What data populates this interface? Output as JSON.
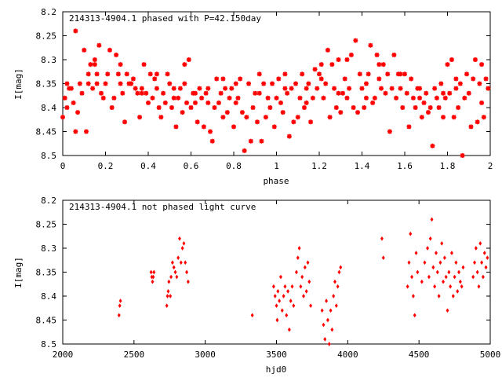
{
  "chart_data": [
    {
      "type": "scatter",
      "title": "214313-4904.1 phased with P=42.150day",
      "xlabel": "phase",
      "ylabel": "I[mag]",
      "xlim": [
        0,
        2
      ],
      "ylim": [
        8.5,
        8.2
      ],
      "y_inverted": true,
      "xticks": [
        "0",
        "0.2",
        "0.4",
        "0.6",
        "0.8",
        "1",
        "1.2",
        "1.4",
        "1.6",
        "1.8",
        "2"
      ],
      "yticks": [
        "8.2",
        "8.25",
        "8.3",
        "8.35",
        "8.4",
        "8.45",
        "8.5"
      ],
      "marker": "star",
      "color": "#ff0000",
      "grid": false,
      "points": [
        [
          0.0,
          8.42
        ],
        [
          0.01,
          8.38
        ],
        [
          0.02,
          8.35
        ],
        [
          0.03,
          8.36
        ],
        [
          0.04,
          8.36
        ],
        [
          0.05,
          8.39
        ],
        [
          0.06,
          8.24
        ],
        [
          0.06,
          8.45
        ],
        [
          0.07,
          8.41
        ],
        [
          0.08,
          8.35
        ],
        [
          0.09,
          8.37
        ],
        [
          0.1,
          8.28
        ],
        [
          0.11,
          8.45
        ],
        [
          0.12,
          8.33
        ],
        [
          0.13,
          8.31
        ],
        [
          0.14,
          8.36
        ],
        [
          0.15,
          8.3
        ],
        [
          0.16,
          8.33
        ],
        [
          0.17,
          8.27
        ],
        [
          0.18,
          8.37
        ],
        [
          0.19,
          8.38
        ],
        [
          0.2,
          8.35
        ],
        [
          0.21,
          8.33
        ],
        [
          0.22,
          8.28
        ],
        [
          0.23,
          8.4
        ],
        [
          0.24,
          8.38
        ],
        [
          0.25,
          8.29
        ],
        [
          0.26,
          8.33
        ],
        [
          0.27,
          8.35
        ],
        [
          0.28,
          8.37
        ],
        [
          0.29,
          8.43
        ],
        [
          0.3,
          8.33
        ],
        [
          0.31,
          8.35
        ],
        [
          0.32,
          8.35
        ],
        [
          0.33,
          8.34
        ],
        [
          0.34,
          8.36
        ],
        [
          0.35,
          8.37
        ],
        [
          0.36,
          8.42
        ],
        [
          0.37,
          8.36
        ],
        [
          0.38,
          8.31
        ],
        [
          0.39,
          8.37
        ],
        [
          0.4,
          8.39
        ],
        [
          0.41,
          8.33
        ],
        [
          0.42,
          8.38
        ],
        [
          0.43,
          8.34
        ],
        [
          0.44,
          8.36
        ],
        [
          0.45,
          8.4
        ],
        [
          0.46,
          8.42
        ],
        [
          0.47,
          8.37
        ],
        [
          0.48,
          8.39
        ],
        [
          0.49,
          8.33
        ],
        [
          0.5,
          8.35
        ],
        [
          0.51,
          8.4
        ],
        [
          0.52,
          8.36
        ],
        [
          0.53,
          8.44
        ],
        [
          0.54,
          8.38
        ],
        [
          0.55,
          8.36
        ],
        [
          0.56,
          8.41
        ],
        [
          0.57,
          8.35
        ],
        [
          0.58,
          8.39
        ],
        [
          0.59,
          8.3
        ],
        [
          0.6,
          8.4
        ],
        [
          0.61,
          8.37
        ],
        [
          0.62,
          8.39
        ],
        [
          0.63,
          8.43
        ],
        [
          0.64,
          8.36
        ],
        [
          0.65,
          8.38
        ],
        [
          0.66,
          8.44
        ],
        [
          0.67,
          8.37
        ],
        [
          0.68,
          8.36
        ],
        [
          0.69,
          8.45
        ],
        [
          0.7,
          8.47
        ],
        [
          0.71,
          8.4
        ],
        [
          0.72,
          8.34
        ],
        [
          0.73,
          8.39
        ],
        [
          0.74,
          8.37
        ],
        [
          0.75,
          8.42
        ],
        [
          0.76,
          8.36
        ],
        [
          0.77,
          8.41
        ],
        [
          0.78,
          8.38
        ],
        [
          0.79,
          8.36
        ],
        [
          0.8,
          8.44
        ],
        [
          0.81,
          8.35
        ],
        [
          0.82,
          8.38
        ],
        [
          0.83,
          8.34
        ],
        [
          0.84,
          8.41
        ],
        [
          0.85,
          8.49
        ],
        [
          0.86,
          8.42
        ],
        [
          0.87,
          8.35
        ],
        [
          0.88,
          8.47
        ],
        [
          0.89,
          8.4
        ],
        [
          0.9,
          8.37
        ],
        [
          0.91,
          8.43
        ],
        [
          0.92,
          8.33
        ],
        [
          0.93,
          8.47
        ],
        [
          0.94,
          8.35
        ],
        [
          0.95,
          8.42
        ],
        [
          0.96,
          8.38
        ],
        [
          0.97,
          8.4
        ],
        [
          0.98,
          8.35
        ],
        [
          0.99,
          8.44
        ],
        [
          1.0,
          8.38
        ],
        [
          1.01,
          8.34
        ],
        [
          1.02,
          8.39
        ],
        [
          1.03,
          8.41
        ],
        [
          1.04,
          8.33
        ],
        [
          1.05,
          8.37
        ],
        [
          1.06,
          8.46
        ],
        [
          1.07,
          8.36
        ],
        [
          1.08,
          8.43
        ],
        [
          1.09,
          8.35
        ],
        [
          1.1,
          8.42
        ],
        [
          1.11,
          8.38
        ],
        [
          1.12,
          8.33
        ],
        [
          1.13,
          8.4
        ],
        [
          1.14,
          8.36
        ],
        [
          1.15,
          8.35
        ],
        [
          1.16,
          8.43
        ],
        [
          1.17,
          8.38
        ],
        [
          1.18,
          8.32
        ],
        [
          1.19,
          8.36
        ],
        [
          1.2,
          8.33
        ],
        [
          1.21,
          8.31
        ],
        [
          1.22,
          8.38
        ],
        [
          1.23,
          8.35
        ],
        [
          1.24,
          8.28
        ],
        [
          1.25,
          8.42
        ],
        [
          1.26,
          8.31
        ],
        [
          1.27,
          8.36
        ],
        [
          1.28,
          8.4
        ],
        [
          1.29,
          8.3
        ],
        [
          1.3,
          8.41
        ],
        [
          1.31,
          8.37
        ],
        [
          1.32,
          8.34
        ],
        [
          1.33,
          8.38
        ],
        [
          1.34,
          8.36
        ],
        [
          1.35,
          8.29
        ],
        [
          1.36,
          8.4
        ],
        [
          1.37,
          8.26
        ],
        [
          1.38,
          8.41
        ],
        [
          1.39,
          8.33
        ],
        [
          1.4,
          8.36
        ],
        [
          1.41,
          8.4
        ],
        [
          1.42,
          8.35
        ],
        [
          1.43,
          8.33
        ],
        [
          1.44,
          8.27
        ],
        [
          1.45,
          8.39
        ],
        [
          1.46,
          8.38
        ],
        [
          1.47,
          8.29
        ],
        [
          1.48,
          8.34
        ],
        [
          1.49,
          8.36
        ],
        [
          1.5,
          8.31
        ],
        [
          1.51,
          8.37
        ],
        [
          1.52,
          8.33
        ],
        [
          1.53,
          8.45
        ],
        [
          1.54,
          8.36
        ],
        [
          1.55,
          8.29
        ],
        [
          1.56,
          8.38
        ],
        [
          1.57,
          8.33
        ],
        [
          1.58,
          8.36
        ],
        [
          1.59,
          8.4
        ],
        [
          1.6,
          8.33
        ],
        [
          1.61,
          8.37
        ],
        [
          1.62,
          8.44
        ],
        [
          1.63,
          8.34
        ],
        [
          1.64,
          8.38
        ],
        [
          1.65,
          8.4
        ],
        [
          1.66,
          8.36
        ],
        [
          1.67,
          8.38
        ],
        [
          1.68,
          8.42
        ],
        [
          1.69,
          8.39
        ],
        [
          1.7,
          8.37
        ],
        [
          1.71,
          8.41
        ],
        [
          1.72,
          8.4
        ],
        [
          1.73,
          8.48
        ],
        [
          1.74,
          8.36
        ],
        [
          1.75,
          8.38
        ],
        [
          1.76,
          8.4
        ],
        [
          1.77,
          8.35
        ],
        [
          1.78,
          8.42
        ],
        [
          1.79,
          8.38
        ],
        [
          1.8,
          8.31
        ],
        [
          1.81,
          8.37
        ],
        [
          1.82,
          8.3
        ],
        [
          1.83,
          8.42
        ],
        [
          1.84,
          8.36
        ],
        [
          1.85,
          8.4
        ],
        [
          1.86,
          8.35
        ],
        [
          1.87,
          8.5
        ],
        [
          1.88,
          8.38
        ],
        [
          1.89,
          8.33
        ],
        [
          1.9,
          8.37
        ],
        [
          1.91,
          8.44
        ],
        [
          1.92,
          8.34
        ],
        [
          1.93,
          8.3
        ],
        [
          1.94,
          8.43
        ],
        [
          1.95,
          8.35
        ],
        [
          1.96,
          8.39
        ],
        [
          1.97,
          8.42
        ],
        [
          1.98,
          8.34
        ],
        [
          1.99,
          8.36
        ],
        [
          0.02,
          8.4
        ],
        [
          0.12,
          8.35
        ],
        [
          0.15,
          8.31
        ],
        [
          0.16,
          8.35
        ],
        [
          0.27,
          8.31
        ],
        [
          0.37,
          8.37
        ],
        [
          0.44,
          8.33
        ],
        [
          0.52,
          8.38
        ],
        [
          0.57,
          8.31
        ],
        [
          0.62,
          8.37
        ],
        [
          0.68,
          8.39
        ],
        [
          0.75,
          8.34
        ],
        [
          0.81,
          8.39
        ],
        [
          0.92,
          8.37
        ],
        [
          1.04,
          8.36
        ],
        [
          1.14,
          8.39
        ],
        [
          1.21,
          8.34
        ],
        [
          1.29,
          8.37
        ],
        [
          1.33,
          8.3
        ],
        [
          1.42,
          8.38
        ],
        [
          1.48,
          8.31
        ],
        [
          1.58,
          8.33
        ],
        [
          1.67,
          8.36
        ],
        [
          1.78,
          8.37
        ],
        [
          1.84,
          8.34
        ],
        [
          1.96,
          8.31
        ]
      ]
    },
    {
      "type": "scatter",
      "title": "214313-4904.1 not phased light curve",
      "xlabel": "hjd0",
      "ylabel": "I[mag]",
      "xlim": [
        2000,
        5000
      ],
      "ylim": [
        8.5,
        8.2
      ],
      "y_inverted": true,
      "xticks": [
        "2000",
        "2500",
        "3000",
        "3500",
        "4000",
        "4500",
        "5000"
      ],
      "yticks": [
        "8.2",
        "8.25",
        "8.3",
        "8.35",
        "8.4",
        "8.45",
        "8.5"
      ],
      "marker": "diamond",
      "color": "#ff0000",
      "grid": false,
      "points": [
        [
          2395,
          8.44
        ],
        [
          2400,
          8.42
        ],
        [
          2405,
          8.41
        ],
        [
          2620,
          8.35
        ],
        [
          2625,
          8.36
        ],
        [
          2630,
          8.37
        ],
        [
          2635,
          8.36
        ],
        [
          2640,
          8.35
        ],
        [
          2730,
          8.42
        ],
        [
          2735,
          8.4
        ],
        [
          2740,
          8.39
        ],
        [
          2745,
          8.37
        ],
        [
          2755,
          8.4
        ],
        [
          2760,
          8.36
        ],
        [
          2770,
          8.33
        ],
        [
          2780,
          8.34
        ],
        [
          2790,
          8.35
        ],
        [
          2800,
          8.36
        ],
        [
          2810,
          8.32
        ],
        [
          2820,
          8.28
        ],
        [
          2830,
          8.33
        ],
        [
          2840,
          8.3
        ],
        [
          2850,
          8.29
        ],
        [
          2860,
          8.33
        ],
        [
          2870,
          8.35
        ],
        [
          2880,
          8.37
        ],
        [
          3330,
          8.44
        ],
        [
          3480,
          8.38
        ],
        [
          3490,
          8.4
        ],
        [
          3500,
          8.42
        ],
        [
          3505,
          8.45
        ],
        [
          3510,
          8.39
        ],
        [
          3520,
          8.41
        ],
        [
          3530,
          8.36
        ],
        [
          3540,
          8.43
        ],
        [
          3550,
          8.4
        ],
        [
          3560,
          8.38
        ],
        [
          3570,
          8.44
        ],
        [
          3580,
          8.39
        ],
        [
          3590,
          8.47
        ],
        [
          3600,
          8.41
        ],
        [
          3610,
          8.38
        ],
        [
          3620,
          8.42
        ],
        [
          3640,
          8.35
        ],
        [
          3650,
          8.32
        ],
        [
          3660,
          8.3
        ],
        [
          3670,
          8.38
        ],
        [
          3680,
          8.36
        ],
        [
          3690,
          8.4
        ],
        [
          3700,
          8.34
        ],
        [
          3710,
          8.39
        ],
        [
          3720,
          8.33
        ],
        [
          3730,
          8.37
        ],
        [
          3740,
          8.42
        ],
        [
          3820,
          8.43
        ],
        [
          3830,
          8.46
        ],
        [
          3840,
          8.49
        ],
        [
          3850,
          8.41
        ],
        [
          3860,
          8.45
        ],
        [
          3870,
          8.5
        ],
        [
          3880,
          8.43
        ],
        [
          3890,
          8.47
        ],
        [
          3900,
          8.4
        ],
        [
          3910,
          8.37
        ],
        [
          3920,
          8.42
        ],
        [
          3930,
          8.38
        ],
        [
          3940,
          8.35
        ],
        [
          3950,
          8.34
        ],
        [
          4240,
          8.28
        ],
        [
          4250,
          8.32
        ],
        [
          4420,
          8.38
        ],
        [
          4430,
          8.33
        ],
        [
          4440,
          8.27
        ],
        [
          4450,
          8.36
        ],
        [
          4460,
          8.4
        ],
        [
          4470,
          8.44
        ],
        [
          4480,
          8.31
        ],
        [
          4490,
          8.35
        ],
        [
          4520,
          8.37
        ],
        [
          4540,
          8.33
        ],
        [
          4560,
          8.3
        ],
        [
          4570,
          8.36
        ],
        [
          4580,
          8.28
        ],
        [
          4590,
          8.24
        ],
        [
          4600,
          8.34
        ],
        [
          4610,
          8.38
        ],
        [
          4620,
          8.31
        ],
        [
          4630,
          8.35
        ],
        [
          4640,
          8.4
        ],
        [
          4650,
          8.33
        ],
        [
          4660,
          8.29
        ],
        [
          4670,
          8.37
        ],
        [
          4680,
          8.32
        ],
        [
          4690,
          8.36
        ],
        [
          4700,
          8.43
        ],
        [
          4710,
          8.35
        ],
        [
          4720,
          8.38
        ],
        [
          4730,
          8.31
        ],
        [
          4740,
          8.4
        ],
        [
          4750,
          8.36
        ],
        [
          4760,
          8.33
        ],
        [
          4770,
          8.39
        ],
        [
          4780,
          8.35
        ],
        [
          4790,
          8.37
        ],
        [
          4800,
          8.38
        ],
        [
          4810,
          8.34
        ],
        [
          4880,
          8.36
        ],
        [
          4890,
          8.33
        ],
        [
          4900,
          8.3
        ],
        [
          4910,
          8.35
        ],
        [
          4920,
          8.38
        ],
        [
          4930,
          8.29
        ],
        [
          4940,
          8.33
        ],
        [
          4950,
          8.36
        ],
        [
          4960,
          8.31
        ],
        [
          4970,
          8.34
        ],
        [
          4980,
          8.32
        ]
      ]
    }
  ]
}
